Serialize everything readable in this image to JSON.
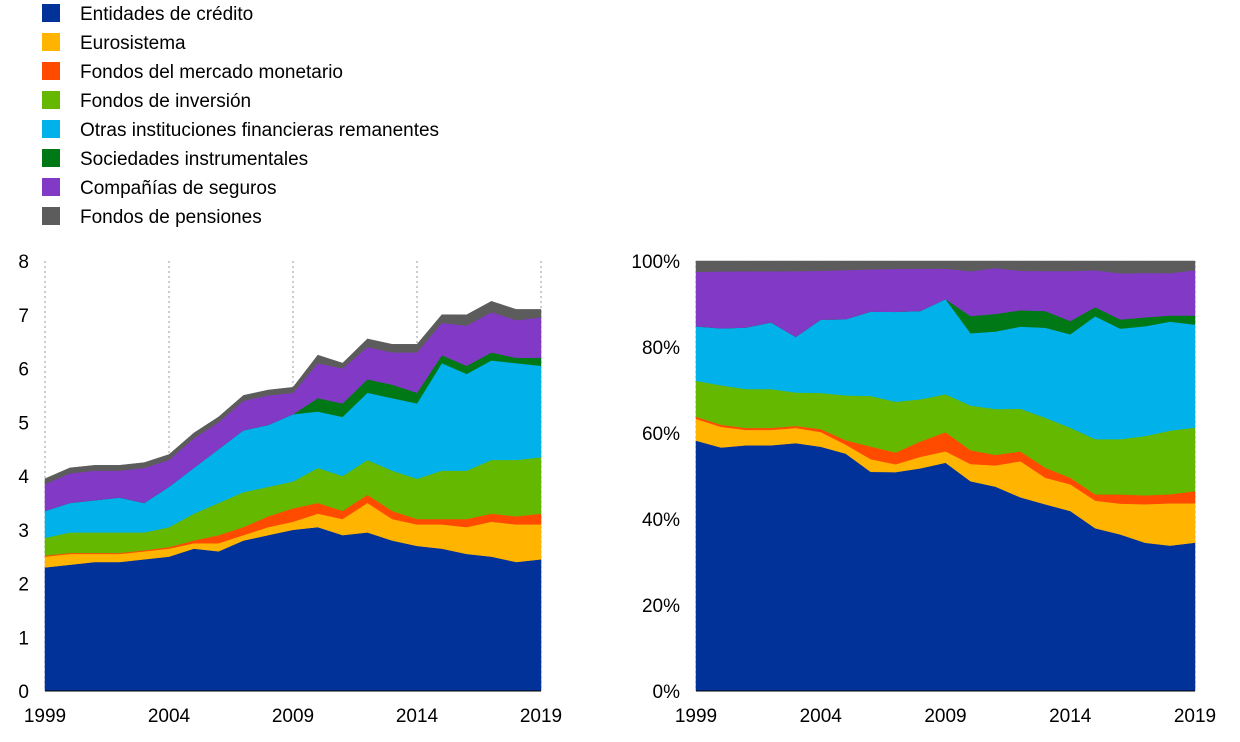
{
  "legend": [
    {
      "name": "Entidades de crédito",
      "color": "#003299"
    },
    {
      "name": "Eurosistema",
      "color": "#FFB400"
    },
    {
      "name": "Fondos del mercado monetario",
      "color": "#FF4B00"
    },
    {
      "name": "Fondos de inversión",
      "color": "#65B800"
    },
    {
      "name": "Otras instituciones financieras remanentes",
      "color": "#00B1EA"
    },
    {
      "name": "Sociedades instrumentales",
      "color": "#007816"
    },
    {
      "name": "Compañías de seguros",
      "color": "#8139C6"
    },
    {
      "name": "Fondos de pensiones",
      "color": "#5C5C5C"
    }
  ],
  "chart_data": [
    {
      "type": "area",
      "stacking": "absolute",
      "x": [
        1999,
        2000,
        2001,
        2002,
        2003,
        2004,
        2005,
        2006,
        2007,
        2008,
        2009,
        2010,
        2011,
        2012,
        2013,
        2014,
        2015,
        2016,
        2017,
        2018,
        2019
      ],
      "xlim": [
        1999,
        2019
      ],
      "ylim": [
        0,
        8
      ],
      "yticks": [
        "0",
        "1",
        "2",
        "3",
        "4",
        "5",
        "6",
        "7",
        "8"
      ],
      "xticks": [
        "1999",
        "2004",
        "2009",
        "2014",
        "2019"
      ],
      "grid": "vertical dotted",
      "series": [
        {
          "name": "Entidades de crédito",
          "values": [
            2.3,
            2.35,
            2.4,
            2.4,
            2.45,
            2.5,
            2.65,
            2.6,
            2.8,
            2.9,
            3.0,
            3.05,
            2.9,
            2.95,
            2.8,
            2.7,
            2.65,
            2.55,
            2.5,
            2.4,
            2.45
          ]
        },
        {
          "name": "Eurosistema",
          "values": [
            0.2,
            0.2,
            0.15,
            0.15,
            0.15,
            0.15,
            0.1,
            0.15,
            0.1,
            0.15,
            0.15,
            0.25,
            0.3,
            0.55,
            0.4,
            0.4,
            0.45,
            0.5,
            0.65,
            0.7,
            0.65
          ]
        },
        {
          "name": "Fondos del mercado monetario",
          "values": [
            0.02,
            0.02,
            0.02,
            0.02,
            0.02,
            0.03,
            0.05,
            0.15,
            0.15,
            0.2,
            0.25,
            0.2,
            0.15,
            0.15,
            0.15,
            0.1,
            0.1,
            0.15,
            0.15,
            0.15,
            0.2
          ]
        },
        {
          "name": "Fondos de inversión",
          "values": [
            0.33,
            0.38,
            0.38,
            0.38,
            0.33,
            0.37,
            0.5,
            0.6,
            0.65,
            0.55,
            0.5,
            0.65,
            0.65,
            0.65,
            0.75,
            0.75,
            0.9,
            0.9,
            1.0,
            1.05,
            1.05
          ]
        },
        {
          "name": "Otras instituciones financieras remanentes",
          "values": [
            0.5,
            0.55,
            0.6,
            0.65,
            0.55,
            0.75,
            0.85,
            1.0,
            1.15,
            1.15,
            1.25,
            1.05,
            1.1,
            1.25,
            1.35,
            1.4,
            2.0,
            1.8,
            1.85,
            1.8,
            1.7
          ]
        },
        {
          "name": "Sociedades instrumentales",
          "values": [
            0,
            0,
            0,
            0,
            0,
            0,
            0,
            0,
            0,
            0,
            0,
            0.25,
            0.25,
            0.25,
            0.25,
            0.2,
            0.15,
            0.15,
            0.15,
            0.1,
            0.15
          ]
        },
        {
          "name": "Compañías de seguros",
          "values": [
            0.5,
            0.55,
            0.55,
            0.5,
            0.65,
            0.5,
            0.55,
            0.5,
            0.55,
            0.55,
            0.4,
            0.65,
            0.65,
            0.6,
            0.6,
            0.75,
            0.6,
            0.75,
            0.75,
            0.7,
            0.75
          ]
        },
        {
          "name": "Fondos de pensiones",
          "values": [
            0.1,
            0.1,
            0.1,
            0.1,
            0.1,
            0.1,
            0.1,
            0.1,
            0.1,
            0.1,
            0.1,
            0.15,
            0.1,
            0.15,
            0.15,
            0.15,
            0.15,
            0.2,
            0.2,
            0.2,
            0.15
          ]
        }
      ]
    },
    {
      "type": "area",
      "stacking": "percent",
      "series_source": "chart_data.0.series",
      "xlim": [
        1999,
        2019
      ],
      "ylim": [
        0,
        100
      ],
      "yticks": [
        "0%",
        "20%",
        "40%",
        "60%",
        "80%",
        "100%"
      ],
      "xticks": [
        "1999",
        "2004",
        "2009",
        "2014",
        "2019"
      ]
    }
  ]
}
